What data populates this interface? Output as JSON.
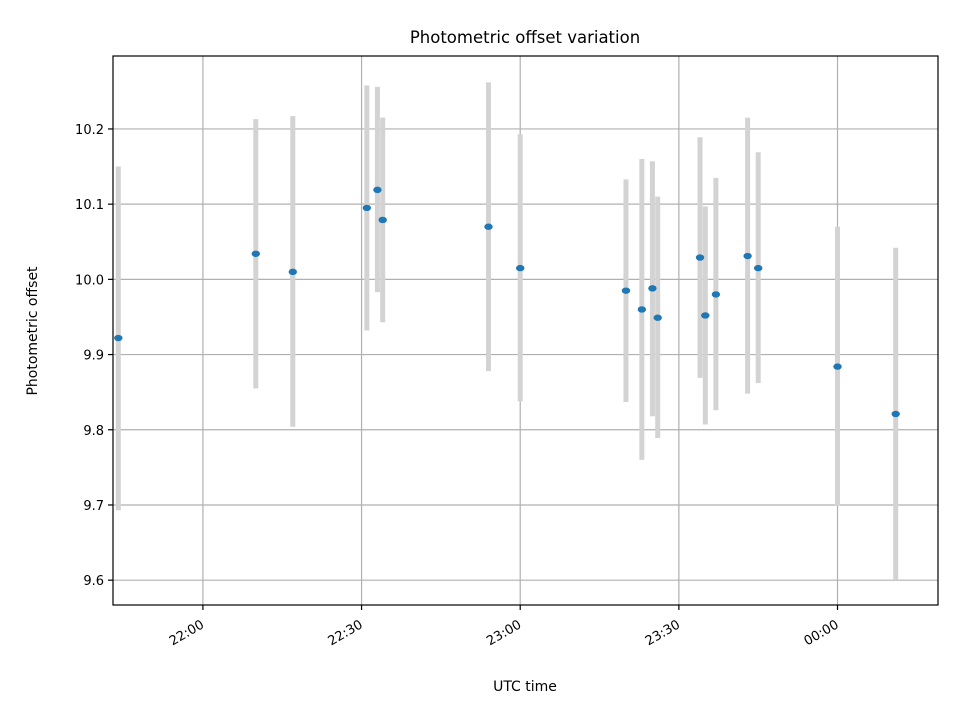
{
  "chart_data": {
    "type": "scatter",
    "title": "Photometric offset variation",
    "xlabel": "UTC time",
    "ylabel": "Photometric offset",
    "grid": true,
    "legend": "none",
    "x_tick_labels": [
      "22:00",
      "22:30",
      "23:00",
      "23:30",
      "00:00"
    ],
    "y_tick_labels": [
      "9.6",
      "9.7",
      "9.8",
      "9.9",
      "10.0",
      "10.1",
      "10.2"
    ],
    "xlim": [
      "21:43",
      "00:19"
    ],
    "ylim": [
      9.567,
      10.297
    ],
    "points": [
      {
        "t": "21:44",
        "y": 9.922,
        "lo": 9.693,
        "hi": 10.15
      },
      {
        "t": "22:10",
        "y": 10.034,
        "lo": 9.855,
        "hi": 10.213
      },
      {
        "t": "22:17",
        "y": 10.01,
        "lo": 9.804,
        "hi": 10.217
      },
      {
        "t": "22:31",
        "y": 10.095,
        "lo": 9.932,
        "hi": 10.258
      },
      {
        "t": "22:33",
        "y": 10.119,
        "lo": 9.983,
        "hi": 10.256
      },
      {
        "t": "22:34",
        "y": 10.079,
        "lo": 9.943,
        "hi": 10.215
      },
      {
        "t": "22:54",
        "y": 10.07,
        "lo": 9.878,
        "hi": 10.262
      },
      {
        "t": "23:00",
        "y": 10.015,
        "lo": 9.838,
        "hi": 10.193
      },
      {
        "t": "23:20",
        "y": 9.985,
        "lo": 9.837,
        "hi": 10.133
      },
      {
        "t": "23:23",
        "y": 9.96,
        "lo": 9.76,
        "hi": 10.16
      },
      {
        "t": "23:25",
        "y": 9.988,
        "lo": 9.818,
        "hi": 10.157
      },
      {
        "t": "23:26",
        "y": 9.949,
        "lo": 9.789,
        "hi": 10.11
      },
      {
        "t": "23:34",
        "y": 10.029,
        "lo": 9.869,
        "hi": 10.189
      },
      {
        "t": "23:35",
        "y": 9.952,
        "lo": 9.807,
        "hi": 10.097
      },
      {
        "t": "23:37",
        "y": 9.98,
        "lo": 9.826,
        "hi": 10.135
      },
      {
        "t": "23:43",
        "y": 10.031,
        "lo": 9.848,
        "hi": 10.215
      },
      {
        "t": "23:45",
        "y": 10.015,
        "lo": 9.862,
        "hi": 10.169
      },
      {
        "t": "00:00",
        "y": 9.884,
        "lo": 9.699,
        "hi": 10.07
      },
      {
        "t": "00:11",
        "y": 9.821,
        "lo": 9.6,
        "hi": 10.042
      }
    ],
    "colors": {
      "point": "#1f77b4",
      "errorbar": "#d3d3d3",
      "grid": "#b0b0b0",
      "axes": "#000000"
    }
  }
}
